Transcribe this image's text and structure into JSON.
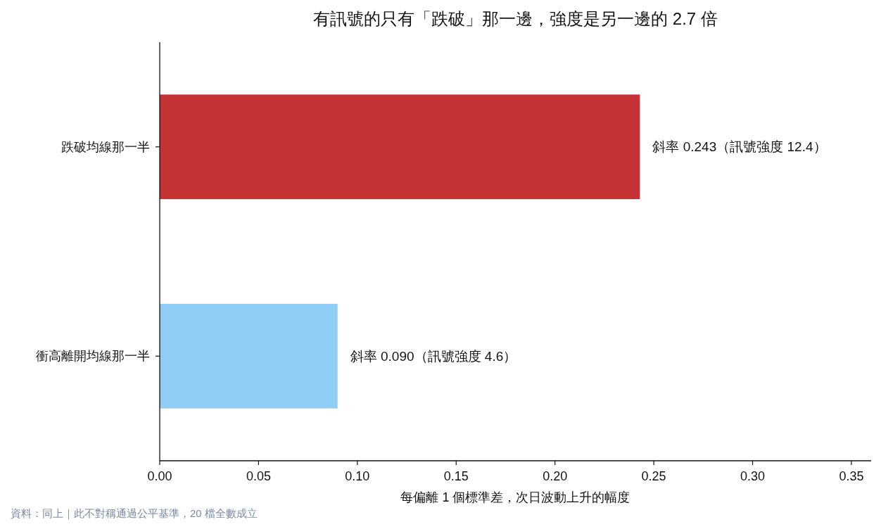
{
  "chart_data": {
    "type": "bar",
    "orientation": "horizontal",
    "title": "有訊號的只有「跌破」那一邊，強度是另一邊的 2.7 倍",
    "xlabel": "每偏離 1 個標準差，次日波動上升的幅度",
    "categories": [
      "跌破均線那一半",
      "衝高離開均線那一半"
    ],
    "values": [
      0.243,
      0.09
    ],
    "colors": [
      "#c43233",
      "#90cdf4"
    ],
    "value_labels": [
      "斜率 0.243（訊號強度 12.4）",
      "斜率 0.090（訊號強度 4.6）"
    ],
    "xlim": [
      0,
      0.36
    ],
    "xticks": [
      {
        "value": 0,
        "label": "0.00"
      },
      {
        "value": 0.05,
        "label": "0.05"
      },
      {
        "value": 0.1,
        "label": "0.10"
      },
      {
        "value": 0.15,
        "label": "0.15"
      },
      {
        "value": 0.2,
        "label": "0.20"
      },
      {
        "value": 0.25,
        "label": "0.25"
      },
      {
        "value": 0.3,
        "label": "0.30"
      },
      {
        "value": 0.35,
        "label": "0.35"
      }
    ],
    "annotations": [
      "資料：同上｜此不對稱通過公平基準，20 檔全數成立"
    ]
  }
}
